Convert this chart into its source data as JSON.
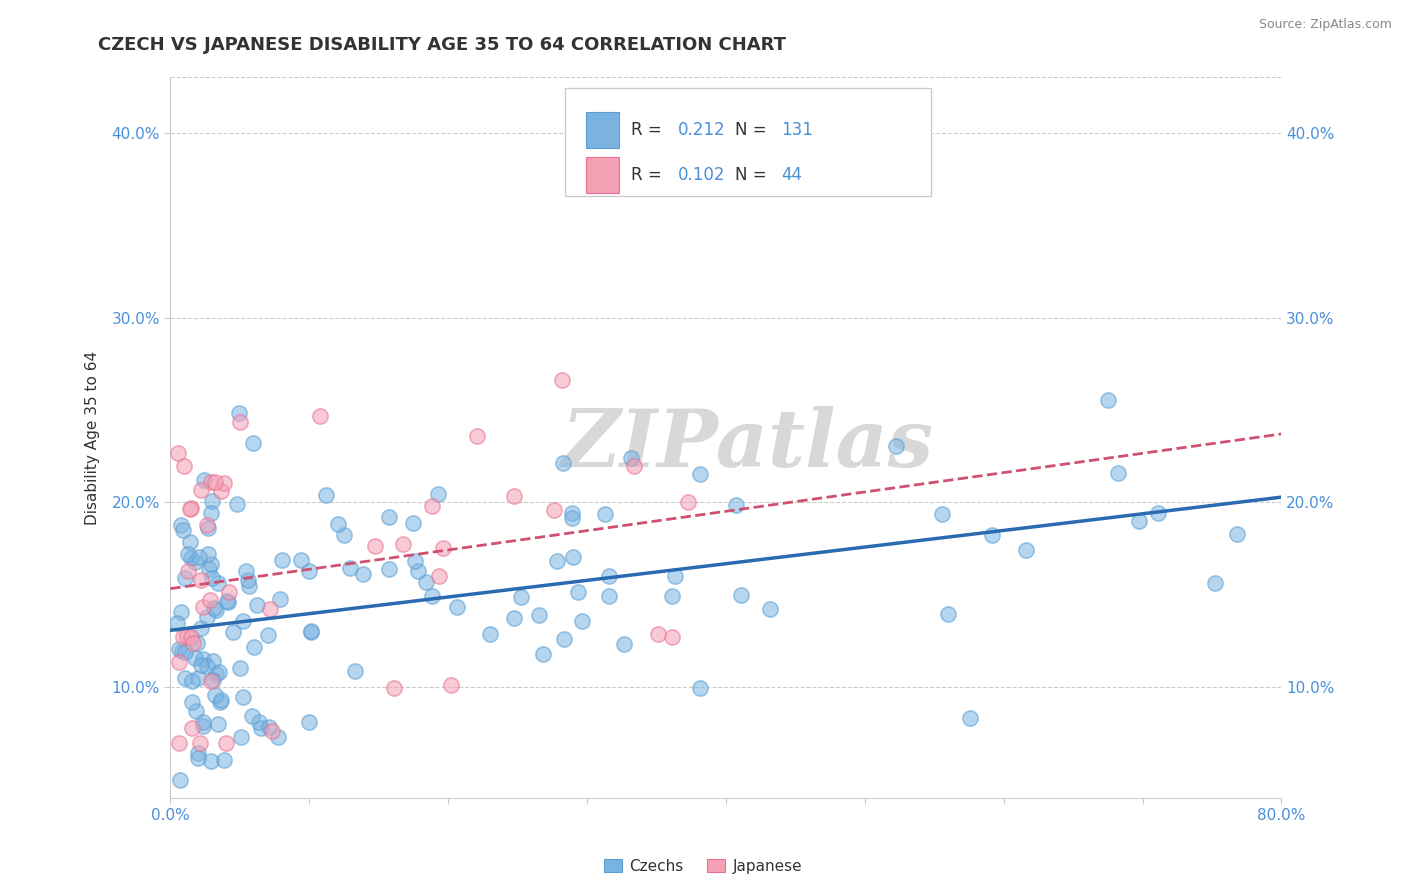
{
  "title": "CZECH VS JAPANESE DISABILITY AGE 35 TO 64 CORRELATION CHART",
  "source": "Source: ZipAtlas.com",
  "ylabel": "Disability Age 35 to 64",
  "xlim": [
    0.0,
    80.0
  ],
  "ylim": [
    4.0,
    43.0
  ],
  "yticks": [
    10.0,
    20.0,
    30.0,
    40.0
  ],
  "ytick_labels": [
    "10.0%",
    "20.0%",
    "30.0%",
    "40.0%"
  ],
  "czech_color": "#7ab3e0",
  "czech_edge": "#5a9fd4",
  "japanese_color": "#f4a0b5",
  "japanese_edge": "#e87090",
  "czech_R": 0.212,
  "czech_N": 131,
  "japanese_R": 0.102,
  "japanese_N": 44,
  "legend_label_czech": "Czechs",
  "legend_label_japanese": "Japanese",
  "czech_line_color": "#2a6ab0",
  "japanese_line_color": "#d05070",
  "watermark_color": "#d8d8d8",
  "title_color": "#333333",
  "source_color": "#888888",
  "tick_color": "#4a90d9",
  "grid_color": "#cccccc"
}
